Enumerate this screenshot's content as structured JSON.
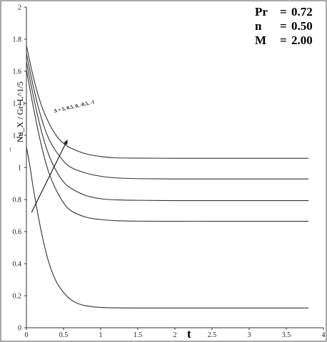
{
  "chart_data": {
    "type": "line",
    "title": "",
    "xlabel": "t",
    "ylabel": "Nu_X / Gr_L^1/5",
    "xlim": [
      0,
      4
    ],
    "ylim": [
      0,
      2
    ],
    "x_ticks": [
      "0",
      "0.5",
      "1",
      "1.5",
      "2",
      "2.5",
      "3",
      "3.5",
      "4"
    ],
    "y_ticks": [
      "0",
      "0.2",
      "0.4",
      "0.6",
      "0.8",
      "1",
      "1.2",
      "1.4",
      "1.6",
      "1.8",
      "2"
    ],
    "parameters": [
      {
        "name": "Pr",
        "value": "0.72"
      },
      {
        "name": "n",
        "value": "0.50"
      },
      {
        "name": "M",
        "value": "2.00"
      }
    ],
    "annotation": "Δ = 5, 0.5, 0, -0.5, -1",
    "series": [
      {
        "x": [
          0,
          0.1,
          0.2,
          0.3,
          0.4,
          0.5,
          0.6,
          0.8,
          1.0,
          1.2,
          1.5,
          2.0,
          2.5,
          3.0,
          3.5,
          3.8
        ],
        "y": [
          1.76,
          1.55,
          1.39,
          1.28,
          1.2,
          1.15,
          1.12,
          1.085,
          1.068,
          1.06,
          1.058,
          1.057,
          1.057,
          1.057,
          1.057,
          1.057
        ]
      },
      {
        "x": [
          0,
          0.1,
          0.2,
          0.3,
          0.4,
          0.5,
          0.6,
          0.8,
          1.0,
          1.2,
          1.5,
          2.0,
          2.5,
          3.0,
          3.5,
          3.8
        ],
        "y": [
          1.71,
          1.49,
          1.31,
          1.18,
          1.1,
          1.04,
          1.0,
          0.965,
          0.945,
          0.935,
          0.93,
          0.928,
          0.928,
          0.928,
          0.928,
          0.928
        ]
      },
      {
        "x": [
          0,
          0.1,
          0.2,
          0.3,
          0.4,
          0.5,
          0.6,
          0.8,
          1.0,
          1.2,
          1.5,
          2.0,
          2.5,
          3.0,
          3.5,
          3.8
        ],
        "y": [
          1.66,
          1.43,
          1.23,
          1.08,
          0.98,
          0.91,
          0.87,
          0.825,
          0.805,
          0.798,
          0.795,
          0.793,
          0.793,
          0.793,
          0.793,
          0.793
        ]
      },
      {
        "x": [
          0,
          0.1,
          0.2,
          0.3,
          0.4,
          0.5,
          0.6,
          0.8,
          1.0,
          1.2,
          1.5,
          2.0,
          2.5,
          3.0,
          3.5,
          3.8
        ],
        "y": [
          1.61,
          1.36,
          1.14,
          0.97,
          0.86,
          0.78,
          0.73,
          0.69,
          0.675,
          0.668,
          0.665,
          0.664,
          0.664,
          0.664,
          0.664,
          0.664
        ]
      },
      {
        "x": [
          0,
          0.05,
          0.1,
          0.2,
          0.3,
          0.4,
          0.5,
          0.6,
          0.7,
          0.8,
          1.0,
          1.2,
          1.5,
          2.0,
          2.5,
          3.0,
          3.5,
          3.8
        ],
        "y": [
          1.13,
          1.0,
          0.85,
          0.6,
          0.41,
          0.29,
          0.22,
          0.175,
          0.15,
          0.137,
          0.127,
          0.124,
          0.123,
          0.123,
          0.123,
          0.123,
          0.123,
          0.123
        ]
      }
    ],
    "arrow": {
      "from": [
        0.07,
        0.72
      ],
      "to": [
        0.55,
        1.17
      ]
    }
  }
}
